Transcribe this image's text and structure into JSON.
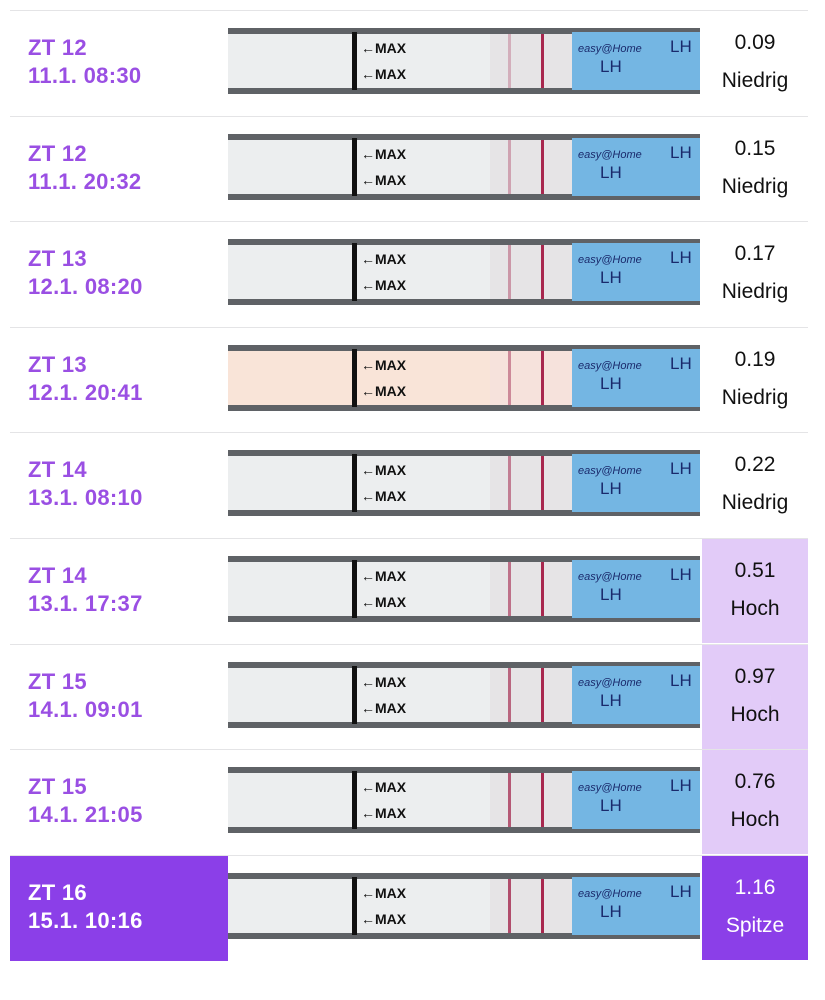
{
  "strip_labels": {
    "max": "←MAX",
    "lh": "LH",
    "brand": "easy@Home"
  },
  "rows": [
    {
      "day": "ZT 12",
      "time": "11.1. 08:30",
      "value": 0.09,
      "level": "Niedrig"
    },
    {
      "day": "ZT 12",
      "time": "11.1. 20:32",
      "value": 0.15,
      "level": "Niedrig"
    },
    {
      "day": "ZT 13",
      "time": "12.1. 08:20",
      "value": 0.17,
      "level": "Niedrig"
    },
    {
      "day": "ZT 13",
      "time": "12.1. 20:41",
      "value": 0.19,
      "level": "Niedrig"
    },
    {
      "day": "ZT 14",
      "time": "13.1. 08:10",
      "value": 0.22,
      "level": "Niedrig"
    },
    {
      "day": "ZT 14",
      "time": "13.1. 17:37",
      "value": 0.51,
      "level": "Hoch",
      "value_bg": "#e2cbf8"
    },
    {
      "day": "ZT 15",
      "time": "14.1. 09:01",
      "value": 0.97,
      "level": "Hoch",
      "value_bg": "#e2cbf8"
    },
    {
      "day": "ZT 15",
      "time": "14.1. 21:05",
      "value": 0.76,
      "level": "Hoch",
      "value_bg": "#e2cbf8"
    },
    {
      "day": "ZT 16",
      "time": "15.1. 10:16",
      "value": 1.16,
      "level": "Spitze",
      "value_bg": "#8b3fe8",
      "label_bg": "#8b3fe8",
      "text_color": "#ffffff"
    }
  ]
}
